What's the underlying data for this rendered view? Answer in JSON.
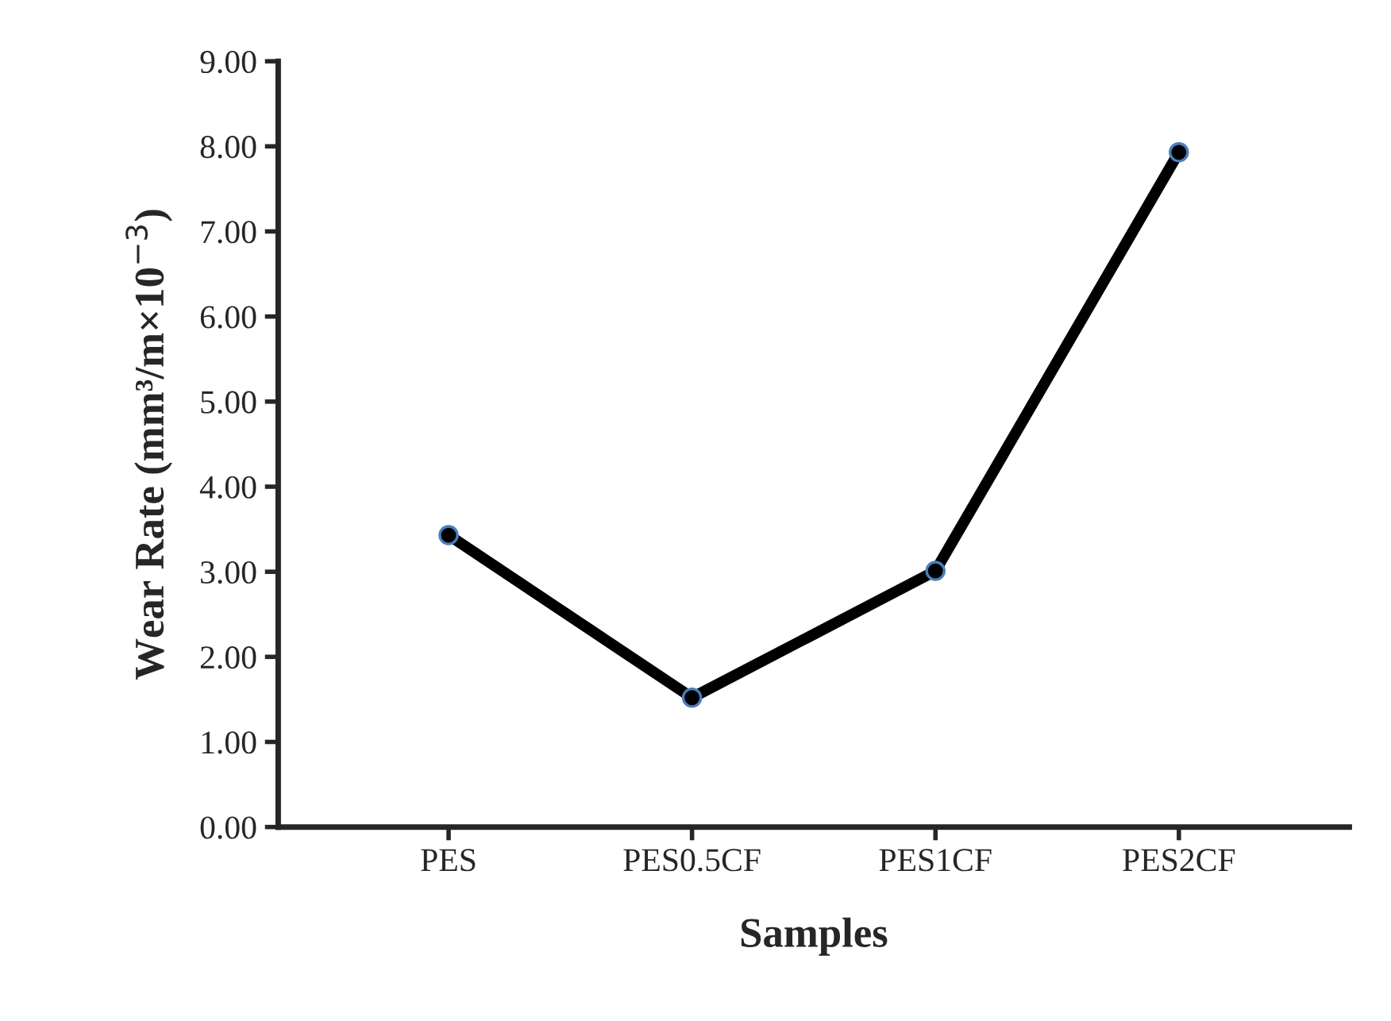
{
  "chart_data": {
    "type": "line",
    "xlabel": "Samples",
    "ylabel": "Wear Rate (mm³/m×10$^{−3}$)",
    "categories": [
      "PES",
      "PES0.5CF",
      "PES1CF",
      "PES2CF"
    ],
    "series": [
      {
        "color": "#000000",
        "values": [
          3.43,
          1.52,
          3.01,
          7.93
        ]
      }
    ],
    "ylim": [
      0,
      9
    ],
    "yticks": [
      {
        "value": 0,
        "label": "0.00"
      },
      {
        "value": 1,
        "label": "1.00"
      },
      {
        "value": 2,
        "label": "2.00"
      },
      {
        "value": 3,
        "label": "3.00"
      },
      {
        "value": 4,
        "label": "4.00"
      },
      {
        "value": 5,
        "label": "5.00"
      },
      {
        "value": 6,
        "label": "6.00"
      },
      {
        "value": 7,
        "label": "7.00"
      },
      {
        "value": 8,
        "label": "8.00"
      },
      {
        "value": 9,
        "label": "9.00"
      }
    ],
    "marker": "circle",
    "line_style": "solid",
    "grid": false,
    "legend": false
  }
}
